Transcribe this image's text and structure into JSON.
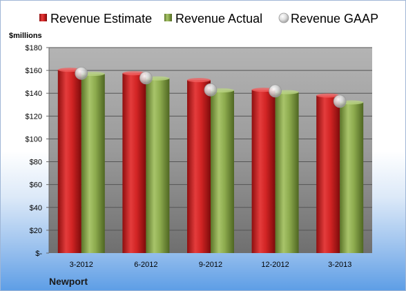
{
  "chart_data": {
    "type": "bar",
    "categories": [
      "3-2012",
      "6-2012",
      "9-2012",
      "12-2012",
      "3-2013"
    ],
    "series": [
      {
        "name": "Revenue Estimate",
        "values": [
          160.5,
          157.5,
          151.5,
          143.0,
          138.0
        ],
        "color": "#d42a2a",
        "kind": "bar"
      },
      {
        "name": "Revenue Actual",
        "values": [
          157.0,
          153.0,
          142.5,
          141.0,
          132.0
        ],
        "color": "#8fae4f",
        "kind": "bar"
      },
      {
        "name": "Revenue GAAP",
        "values": [
          157.5,
          153.5,
          143.0,
          142.0,
          133.0
        ],
        "color": "#c8c8c8",
        "kind": "marker"
      }
    ],
    "yticks": [
      "$-",
      "$20",
      "$40",
      "$60",
      "$80",
      "$100",
      "$120",
      "$140",
      "$160",
      "$180"
    ],
    "ylim": [
      0,
      180
    ],
    "ylabel": "$millions",
    "grid": true,
    "legend_position": "top"
  },
  "company": "Newport"
}
